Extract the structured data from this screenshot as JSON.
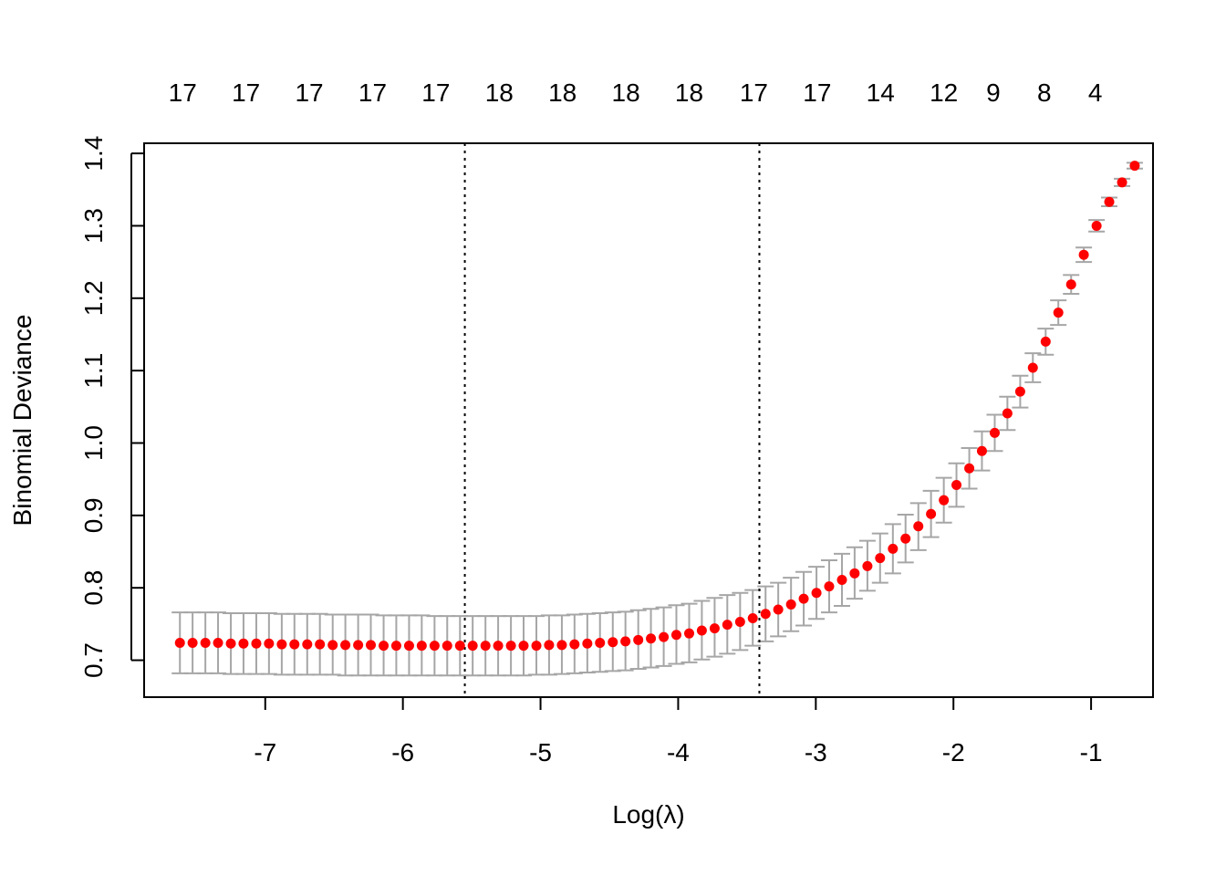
{
  "chart_data": {
    "type": "scatter",
    "title": "",
    "xlabel": "Log(λ)",
    "ylabel": "Binomial Deviance",
    "xlim": [
      -7.88,
      -0.55
    ],
    "ylim": [
      0.649,
      1.414
    ],
    "x_ticks": [
      -7,
      -6,
      -5,
      -4,
      -3,
      -2,
      -1
    ],
    "x_tick_labels": [
      "-7",
      "-6",
      "-5",
      "-4",
      "-3",
      "-2",
      "-1"
    ],
    "y_ticks": [
      0.7,
      0.8,
      0.9,
      1.0,
      1.1,
      1.2,
      1.3,
      1.4
    ],
    "y_tick_labels": [
      "0.7",
      "0.8",
      "0.9",
      "1.0",
      "1.1",
      "1.2",
      "1.3",
      "1.4"
    ],
    "top_axis": {
      "x": [
        -7.6,
        -7.14,
        -6.68,
        -6.22,
        -5.76,
        -5.3,
        -4.84,
        -4.38,
        -3.92,
        -3.45,
        -2.99,
        -2.53,
        -2.07,
        -1.71,
        -1.34,
        -0.97
      ],
      "labels": [
        "17",
        "17",
        "17",
        "17",
        "17",
        "18",
        "18",
        "18",
        "18",
        "17",
        "17",
        "14",
        "12",
        "9",
        "8",
        "4"
      ]
    },
    "vlines": [
      -5.55,
      -3.41
    ],
    "x": [
      -7.62,
      -7.528,
      -7.435,
      -7.343,
      -7.25,
      -7.158,
      -7.065,
      -6.973,
      -6.88,
      -6.788,
      -6.695,
      -6.603,
      -6.51,
      -6.418,
      -6.325,
      -6.233,
      -6.14,
      -6.048,
      -5.955,
      -5.863,
      -5.77,
      -5.678,
      -5.585,
      -5.493,
      -5.4,
      -5.308,
      -5.215,
      -5.123,
      -5.03,
      -4.938,
      -4.845,
      -4.753,
      -4.66,
      -4.568,
      -4.475,
      -4.383,
      -4.29,
      -4.198,
      -4.105,
      -4.013,
      -3.92,
      -3.828,
      -3.735,
      -3.643,
      -3.55,
      -3.458,
      -3.365,
      -3.273,
      -3.18,
      -3.088,
      -2.995,
      -2.903,
      -2.81,
      -2.718,
      -2.625,
      -2.533,
      -2.44,
      -2.348,
      -2.255,
      -2.163,
      -2.07,
      -1.978,
      -1.885,
      -1.793,
      -1.7,
      -1.608,
      -1.515,
      -1.423,
      -1.33,
      -1.238,
      -1.145,
      -1.053,
      -0.96,
      -0.868,
      -0.775,
      -0.683
    ],
    "y": [
      0.724,
      0.724,
      0.724,
      0.724,
      0.723,
      0.723,
      0.723,
      0.723,
      0.722,
      0.722,
      0.722,
      0.722,
      0.721,
      0.721,
      0.721,
      0.721,
      0.72,
      0.72,
      0.72,
      0.72,
      0.72,
      0.72,
      0.72,
      0.72,
      0.72,
      0.72,
      0.72,
      0.72,
      0.72,
      0.721,
      0.721,
      0.722,
      0.723,
      0.724,
      0.725,
      0.726,
      0.728,
      0.73,
      0.732,
      0.735,
      0.737,
      0.741,
      0.744,
      0.749,
      0.753,
      0.758,
      0.764,
      0.77,
      0.777,
      0.785,
      0.793,
      0.802,
      0.811,
      0.82,
      0.83,
      0.841,
      0.854,
      0.868,
      0.885,
      0.902,
      0.921,
      0.942,
      0.965,
      0.989,
      1.014,
      1.041,
      1.071,
      1.104,
      1.14,
      1.18,
      1.219,
      1.26,
      1.3,
      1.333,
      1.36,
      1.383
    ],
    "err_lo": [
      0.682,
      0.682,
      0.682,
      0.682,
      0.681,
      0.681,
      0.681,
      0.681,
      0.68,
      0.68,
      0.68,
      0.68,
      0.68,
      0.679,
      0.679,
      0.679,
      0.679,
      0.679,
      0.679,
      0.679,
      0.679,
      0.679,
      0.679,
      0.679,
      0.679,
      0.679,
      0.679,
      0.679,
      0.68,
      0.68,
      0.681,
      0.682,
      0.683,
      0.684,
      0.685,
      0.686,
      0.688,
      0.69,
      0.692,
      0.695,
      0.697,
      0.701,
      0.705,
      0.709,
      0.714,
      0.72,
      0.726,
      0.733,
      0.74,
      0.748,
      0.757,
      0.766,
      0.775,
      0.785,
      0.796,
      0.807,
      0.82,
      0.835,
      0.852,
      0.87,
      0.89,
      0.912,
      0.937,
      0.962,
      0.989,
      1.018,
      1.049,
      1.084,
      1.122,
      1.163,
      1.206,
      1.25,
      1.292,
      1.327,
      1.355,
      1.379
    ],
    "err_hi": [
      0.766,
      0.766,
      0.766,
      0.766,
      0.765,
      0.765,
      0.765,
      0.765,
      0.764,
      0.764,
      0.764,
      0.764,
      0.763,
      0.763,
      0.763,
      0.763,
      0.762,
      0.762,
      0.762,
      0.762,
      0.761,
      0.761,
      0.761,
      0.761,
      0.761,
      0.761,
      0.761,
      0.761,
      0.761,
      0.762,
      0.762,
      0.763,
      0.764,
      0.765,
      0.766,
      0.767,
      0.769,
      0.771,
      0.773,
      0.776,
      0.778,
      0.782,
      0.786,
      0.79,
      0.793,
      0.797,
      0.802,
      0.807,
      0.814,
      0.822,
      0.829,
      0.838,
      0.847,
      0.856,
      0.865,
      0.875,
      0.888,
      0.901,
      0.917,
      0.934,
      0.952,
      0.972,
      0.993,
      1.016,
      1.039,
      1.064,
      1.093,
      1.124,
      1.158,
      1.197,
      1.232,
      1.27,
      1.308,
      1.339,
      1.365,
      1.387
    ],
    "point_color": "#ff0000",
    "errorbar_color": "#a6a6a6",
    "vline_color": "#000000",
    "grid": false,
    "legend": "none"
  }
}
